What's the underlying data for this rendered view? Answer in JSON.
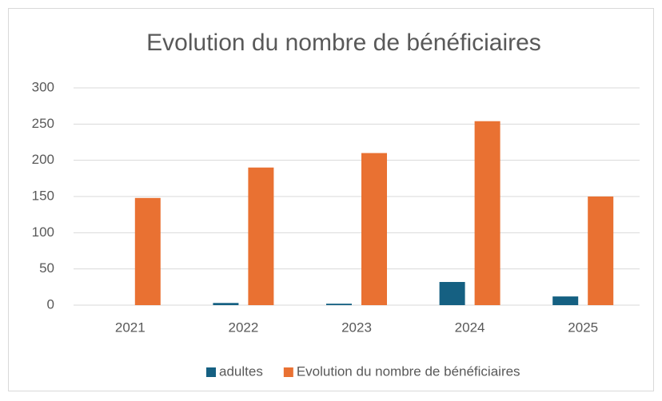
{
  "chart_data": {
    "type": "bar",
    "title": "Evolution du nombre de bénéficiaires",
    "categories": [
      "2021",
      "2022",
      "2023",
      "2024",
      "2025"
    ],
    "series": [
      {
        "name": "adultes",
        "color": "#156082",
        "values": [
          0,
          3,
          2,
          32,
          12
        ]
      },
      {
        "name": "Evolution du nombre de bénéficiaires",
        "color": "#E97132",
        "values": [
          148,
          190,
          210,
          254,
          150
        ]
      }
    ],
    "ylim": [
      0,
      300
    ],
    "yticks": [
      0,
      50,
      100,
      150,
      200,
      250,
      300
    ],
    "grid": true,
    "legend": "bottom"
  }
}
